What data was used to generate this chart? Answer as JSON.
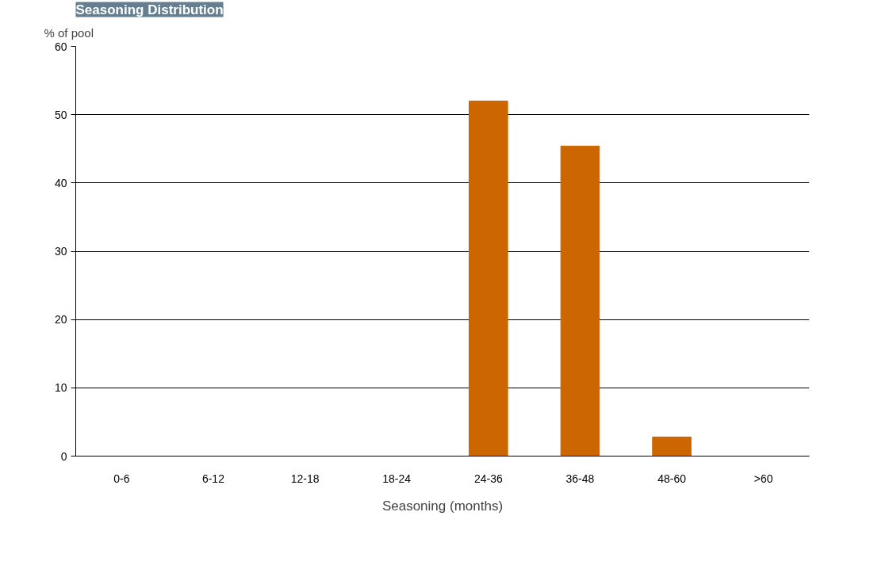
{
  "chart_data": {
    "type": "bar",
    "title": "Seasoning Distribution",
    "ylabel": "% of pool",
    "xlabel": "Seasoning (months)",
    "categories": [
      "0-6",
      "6-12",
      "12-18",
      "18-24",
      "24-36",
      "36-48",
      "48-60",
      ">60"
    ],
    "values": [
      0,
      0,
      0,
      0,
      52,
      45.4,
      2.8,
      0
    ],
    "color": "#cc6600",
    "ylim": [
      0,
      60
    ],
    "yticks": [
      0,
      10,
      20,
      30,
      40,
      50,
      60
    ],
    "grid": "y"
  }
}
